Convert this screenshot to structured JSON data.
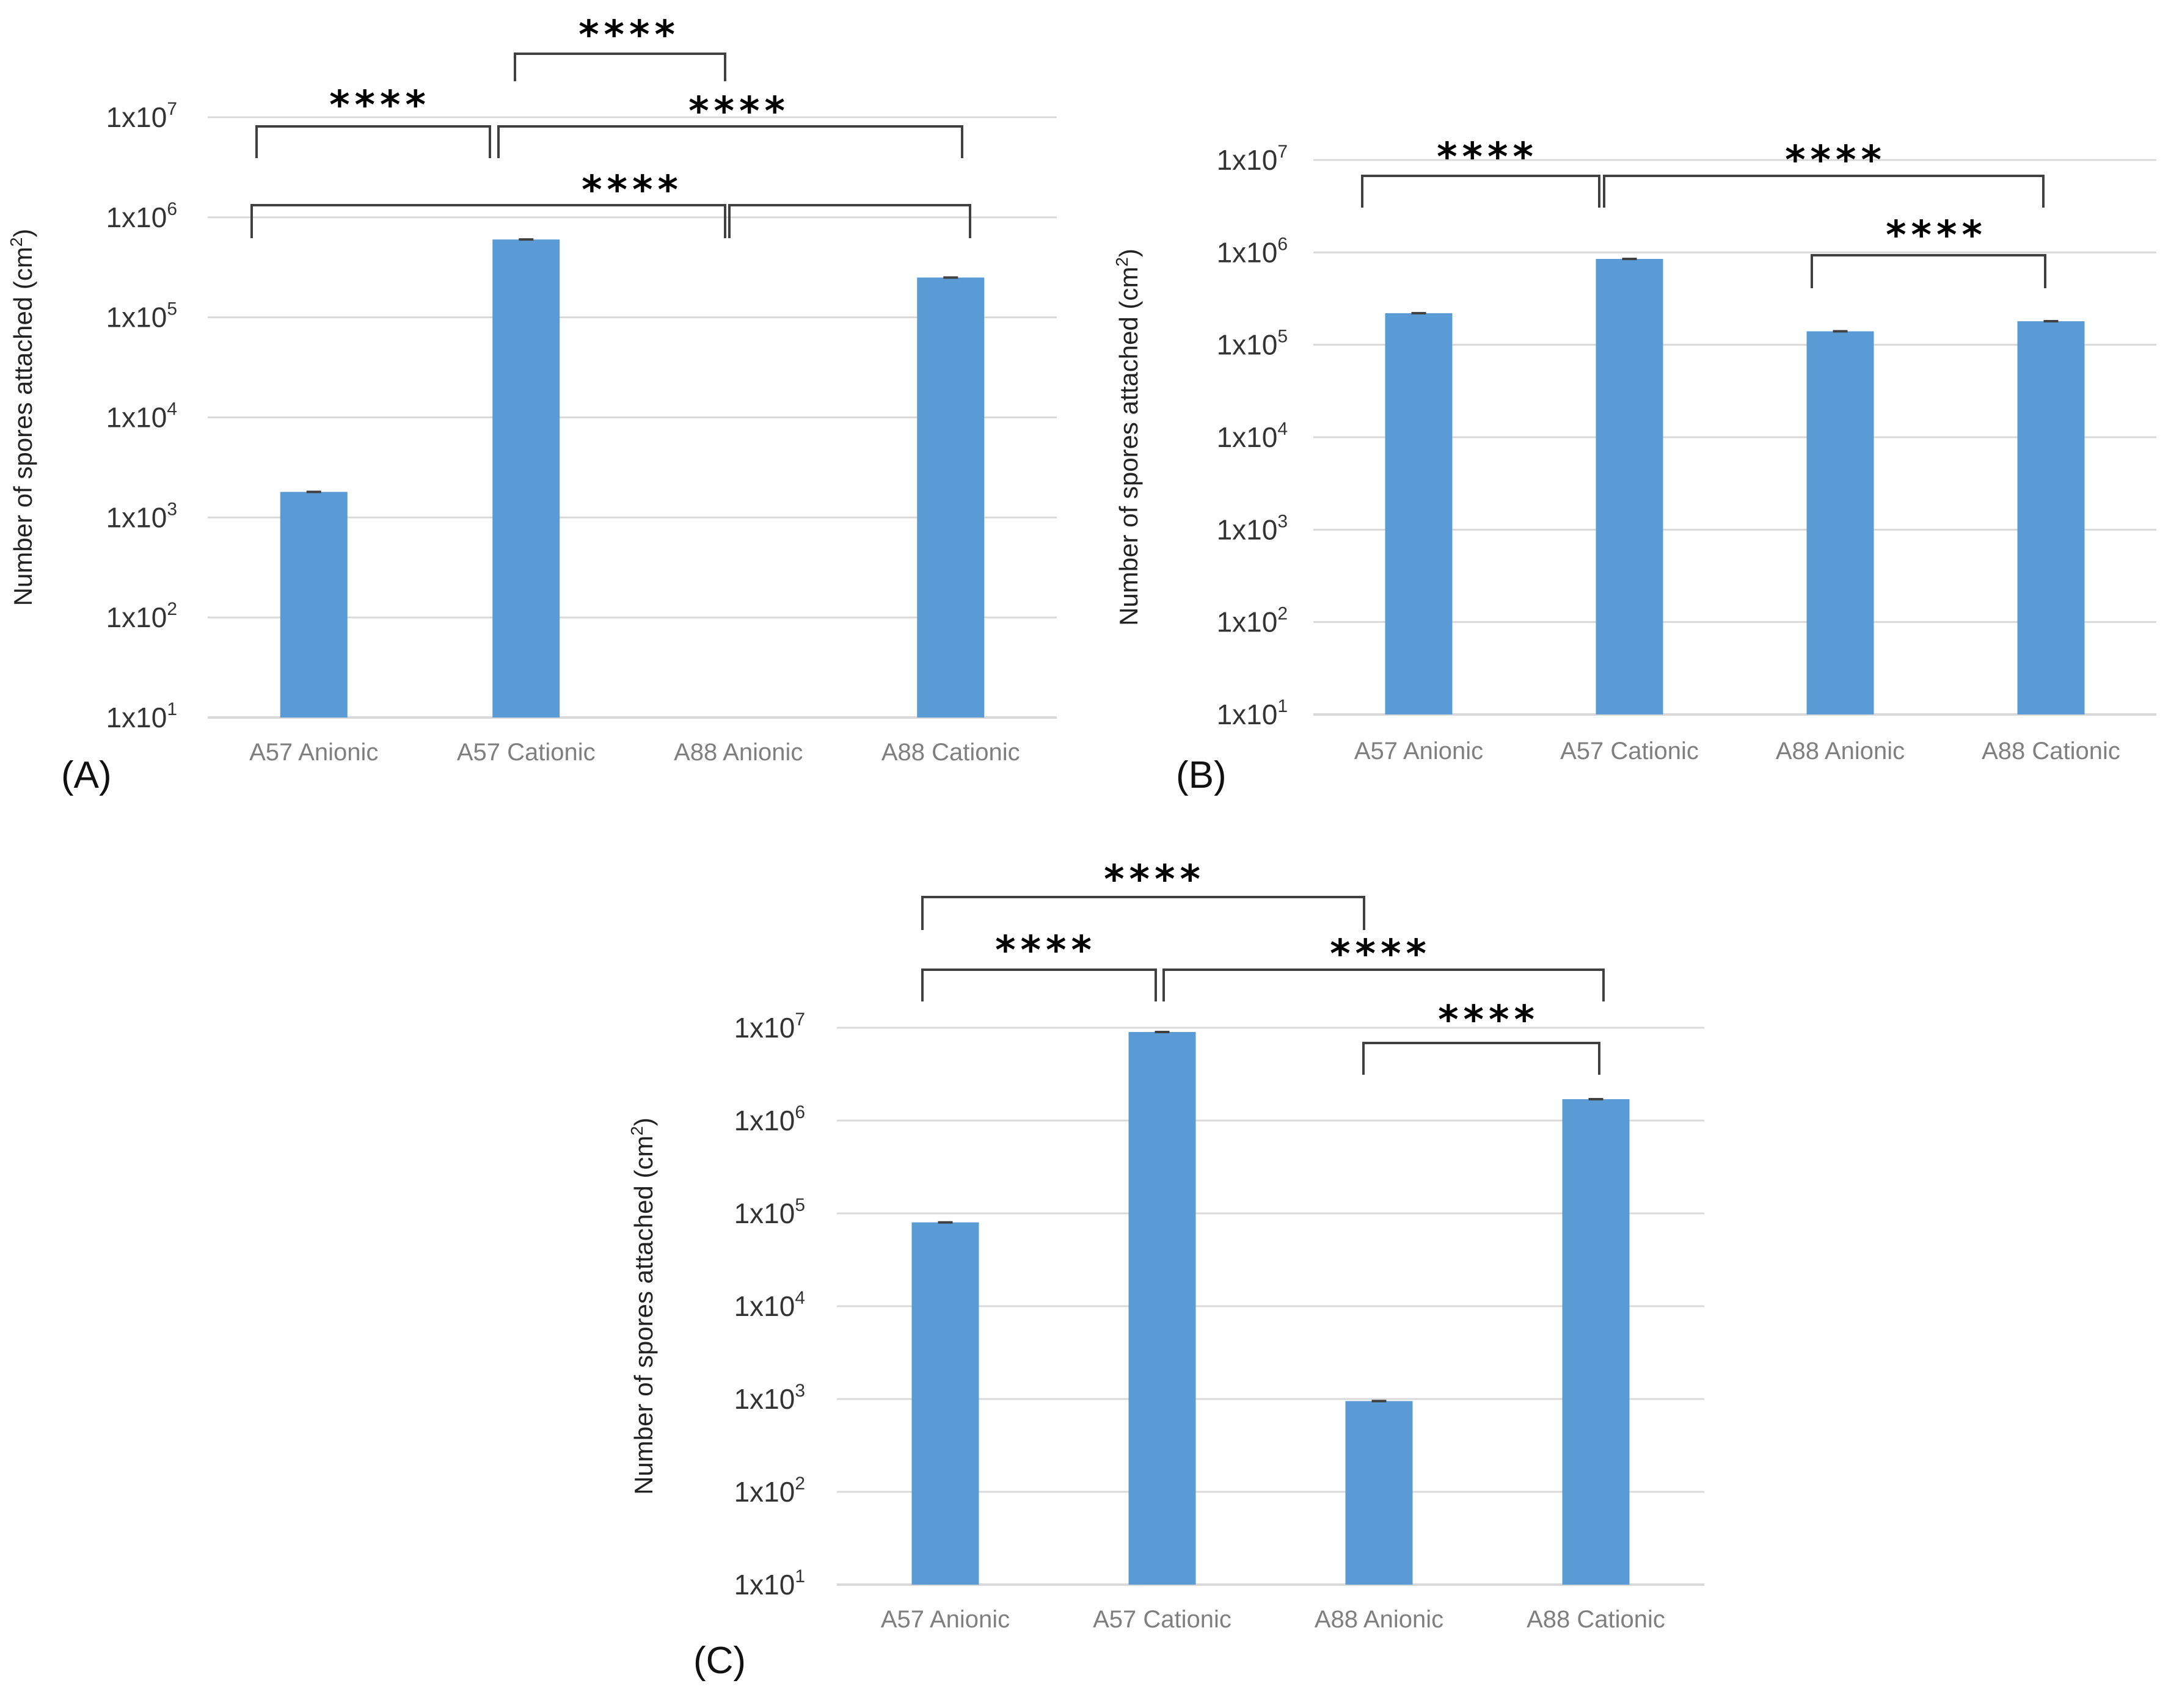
{
  "colors": {
    "bar": "#5b9bd5",
    "grid": "#d9d9d9",
    "bracket": "#404040",
    "errorbar": "#404040"
  },
  "chart_data": [
    {
      "panel": "(A)",
      "type": "bar",
      "scale": "log",
      "ylabel": "Number of spores attached (cm",
      "ylabel_sup": "2",
      "ylabel_end": ")",
      "yticks": [
        {
          "base": "1x10",
          "exp": "1"
        },
        {
          "base": "1x10",
          "exp": "2"
        },
        {
          "base": "1x10",
          "exp": "3"
        },
        {
          "base": "1x10",
          "exp": "4"
        },
        {
          "base": "1x10",
          "exp": "5"
        },
        {
          "base": "1x10",
          "exp": "6"
        },
        {
          "base": "1x10",
          "exp": "7"
        }
      ],
      "ylim": [
        10,
        10000000
      ],
      "grid": true,
      "categories": [
        "A57 Anionic",
        "A57 Cationic",
        "A88 Anionic",
        "A88 Cationic"
      ],
      "values": [
        1800,
        600000,
        null,
        250000
      ],
      "significance": [
        {
          "label": "****",
          "from": 0,
          "to": 1
        },
        {
          "label": "****",
          "from": 1,
          "to": 2
        },
        {
          "label": "****",
          "from": 1,
          "to": 3
        },
        {
          "label": "****",
          "from": 0,
          "to": 2
        },
        {
          "label": "",
          "from": 2,
          "to": 3
        }
      ]
    },
    {
      "panel": "(B)",
      "type": "bar",
      "scale": "log",
      "ylabel": "Number of spores attached (cm",
      "ylabel_sup": "2",
      "ylabel_end": ")",
      "yticks": [
        {
          "base": "1x10",
          "exp": "1"
        },
        {
          "base": "1x10",
          "exp": "2"
        },
        {
          "base": "1x10",
          "exp": "3"
        },
        {
          "base": "1x10",
          "exp": "4"
        },
        {
          "base": "1x10",
          "exp": "5"
        },
        {
          "base": "1x10",
          "exp": "6"
        },
        {
          "base": "1x10",
          "exp": "7"
        }
      ],
      "ylim": [
        10,
        10000000
      ],
      "grid": true,
      "categories": [
        "A57 Anionic",
        "A57 Cationic",
        "A88 Anionic",
        "A88 Cationic"
      ],
      "values": [
        220000,
        850000,
        140000,
        180000
      ],
      "significance": [
        {
          "label": "****",
          "from": 0,
          "to": 1
        },
        {
          "label": "****",
          "from": 1,
          "to": 3
        },
        {
          "label": "****",
          "from": 2,
          "to": 3
        }
      ]
    },
    {
      "panel": "(C)",
      "type": "bar",
      "scale": "log",
      "ylabel": "Number of spores attached (cm",
      "ylabel_sup": "2",
      "ylabel_end": ")",
      "yticks": [
        {
          "base": "1x10",
          "exp": "1"
        },
        {
          "base": "1x10",
          "exp": "2"
        },
        {
          "base": "1x10",
          "exp": "3"
        },
        {
          "base": "1x10",
          "exp": "4"
        },
        {
          "base": "1x10",
          "exp": "5"
        },
        {
          "base": "1x10",
          "exp": "6"
        },
        {
          "base": "1x10",
          "exp": "7"
        }
      ],
      "ylim": [
        10,
        10000000
      ],
      "grid": true,
      "categories": [
        "A57 Anionic",
        "A57 Cationic",
        "A88 Anionic",
        "A88 Cationic"
      ],
      "values": [
        80000,
        9000000,
        950,
        1700000
      ],
      "significance": [
        {
          "label": "****",
          "from": 0,
          "to": 2
        },
        {
          "label": "****",
          "from": 0,
          "to": 1
        },
        {
          "label": "****",
          "from": 1,
          "to": 3
        },
        {
          "label": "****",
          "from": 2,
          "to": 3
        }
      ]
    }
  ]
}
